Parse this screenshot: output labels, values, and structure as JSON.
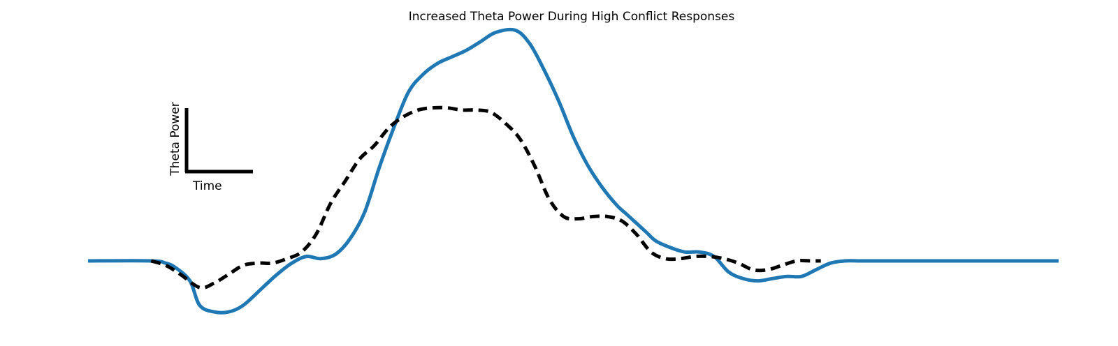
{
  "chart_data": {
    "type": "line",
    "title": "Increased Theta Power During High Conflict Responses",
    "xlabel": "",
    "ylabel": "",
    "axes_visible": false,
    "grid": false,
    "legend": "none",
    "xlim": [
      0,
      100
    ],
    "ylim": [
      -0.35,
      1.25
    ],
    "scale_bar": {
      "vertical_label": "Theta Power",
      "horizontal_label": "Time"
    },
    "series": [
      {
        "color": "#1f77b4",
        "line_style": "solid",
        "x": [
          0,
          6.5,
          8,
          9,
          10.5,
          11.5,
          13,
          14.5,
          16,
          18,
          19.5,
          21,
          22.5,
          24,
          25.5,
          27,
          28.5,
          30,
          31.5,
          33,
          34.5,
          36,
          37.5,
          39,
          40.5,
          42,
          44,
          45.5,
          47,
          48.5,
          50,
          51.5,
          53,
          54.5,
          55.5,
          56.5,
          57.5,
          58.5,
          60,
          61.5,
          63,
          64.5,
          66,
          67.5,
          69,
          70.5,
          72,
          73.5,
          75,
          76.5,
          78,
          79.5,
          81,
          82.5,
          84,
          85.5,
          87,
          88.5,
          90,
          91.5,
          93,
          94.5,
          96,
          98,
          100
        ],
        "y": [
          0,
          0,
          -0.01,
          -0.03,
          -0.09,
          -0.2,
          -0.23,
          -0.23,
          -0.2,
          -0.12,
          -0.06,
          -0.01,
          0.02,
          0.01,
          0.03,
          0.1,
          0.22,
          0.42,
          0.6,
          0.76,
          0.84,
          0.89,
          0.92,
          0.95,
          0.99,
          1.03,
          1.04,
          0.98,
          0.86,
          0.72,
          0.56,
          0.43,
          0.33,
          0.25,
          0.21,
          0.17,
          0.13,
          0.09,
          0.06,
          0.04,
          0.04,
          0.02,
          -0.05,
          -0.08,
          -0.09,
          -0.08,
          -0.07,
          -0.07,
          -0.04,
          -0.01,
          0,
          0,
          0,
          0,
          0,
          0,
          0,
          0,
          0,
          0,
          0,
          0,
          0,
          0,
          0
        ]
      },
      {
        "color": "#000000",
        "line_style": "dashed",
        "x": [
          6.5,
          8,
          9.5,
          11.5,
          13,
          14.5,
          16,
          17.5,
          19,
          20.5,
          22,
          23.5,
          25,
          26.5,
          28,
          29.5,
          31,
          32.5,
          34,
          35.5,
          37,
          38.5,
          40,
          41.5,
          43,
          44.5,
          46,
          47.5,
          49,
          50.5,
          52,
          53.5,
          55,
          56.5,
          58,
          59.5,
          61,
          62.5,
          64,
          65.5,
          67,
          68.5,
          70,
          71.5,
          73,
          74.5,
          75.5
        ],
        "y": [
          0,
          -0.02,
          -0.06,
          -0.12,
          -0.1,
          -0.06,
          -0.02,
          -0.01,
          -0.01,
          0.01,
          0.04,
          0.12,
          0.26,
          0.36,
          0.46,
          0.52,
          0.6,
          0.65,
          0.68,
          0.69,
          0.69,
          0.68,
          0.68,
          0.67,
          0.62,
          0.55,
          0.43,
          0.28,
          0.2,
          0.19,
          0.2,
          0.2,
          0.18,
          0.12,
          0.04,
          0.01,
          0.01,
          0.02,
          0.02,
          0.01,
          -0.01,
          -0.04,
          -0.04,
          -0.02,
          0,
          0,
          0
        ]
      }
    ]
  }
}
